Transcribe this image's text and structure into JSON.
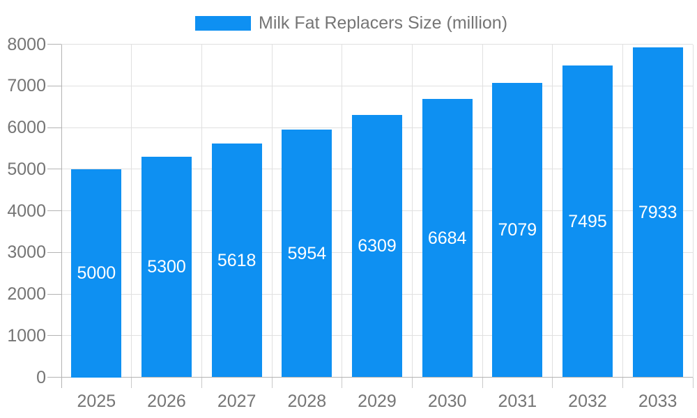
{
  "chart_data": {
    "type": "bar",
    "legend": "Milk Fat Replacers Size (million)",
    "legend_position": "top",
    "categories": [
      "2025",
      "2026",
      "2027",
      "2028",
      "2029",
      "2030",
      "2031",
      "2032",
      "2033"
    ],
    "values": [
      5000,
      5300,
      5618,
      5954,
      6309,
      6684,
      7079,
      7495,
      7933
    ],
    "title": "",
    "xlabel": "",
    "ylabel": "",
    "ylim": [
      0,
      8000
    ],
    "ytick_step": 1000,
    "ytick_labels": [
      "0",
      "1000",
      "2000",
      "3000",
      "4000",
      "5000",
      "6000",
      "7000",
      "8000"
    ],
    "grid": true,
    "value_labels": "centered inside bars",
    "colors": {
      "bar": "#0e90f2",
      "value_label": "#ffffff",
      "axis_text": "#757575",
      "legend_text": "#757575",
      "gridline": "#e0e0e0",
      "axis_line": "#b3b3b3",
      "background": "#ffffff"
    }
  }
}
